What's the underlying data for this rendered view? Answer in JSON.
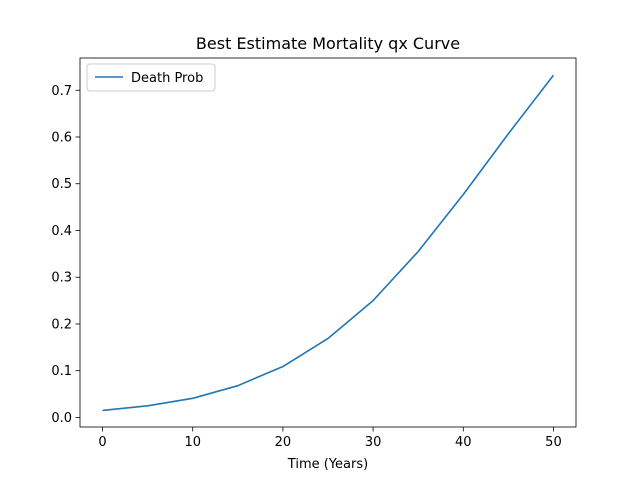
{
  "chart_data": {
    "type": "line",
    "title": "Best Estimate Mortality qx Curve",
    "xlabel": "Time (Years)",
    "ylabel": "",
    "xlim": [
      -2.5,
      52.5
    ],
    "ylim": [
      -0.0204,
      0.769
    ],
    "xticks": [
      0,
      10,
      20,
      30,
      40,
      50
    ],
    "yticks": [
      0.0,
      0.1,
      0.2,
      0.3,
      0.4,
      0.5,
      0.6,
      0.7
    ],
    "xtick_labels": [
      "0",
      "10",
      "20",
      "30",
      "40",
      "50"
    ],
    "ytick_labels": [
      "0.0",
      "0.1",
      "0.2",
      "0.3",
      "0.4",
      "0.5",
      "0.6",
      "0.7"
    ],
    "grid": false,
    "legend_position": "upper-left",
    "series": [
      {
        "name": "Death Prob",
        "color": "#1f77b4",
        "x": [
          0,
          5,
          10,
          15,
          20,
          25,
          30,
          35,
          40,
          45,
          50
        ],
        "y": [
          0.015,
          0.025,
          0.041,
          0.068,
          0.109,
          0.169,
          0.25,
          0.355,
          0.477,
          0.607,
          0.732
        ]
      }
    ]
  }
}
